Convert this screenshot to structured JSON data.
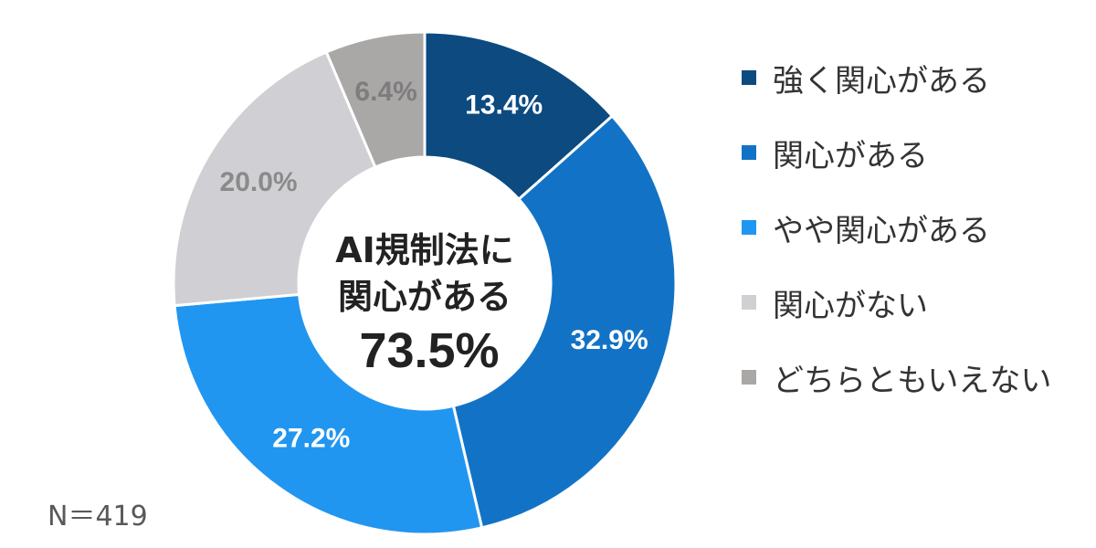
{
  "chart_data": {
    "type": "pie",
    "variant": "donut",
    "categories": [
      "強く関心がある",
      "関心がある",
      "やや関心がある",
      "関心がない",
      "どちらともいえない"
    ],
    "values": [
      13.4,
      32.9,
      27.2,
      20.0,
      6.4
    ],
    "value_labels": [
      "13.4%",
      "32.9%",
      "27.2%",
      "20.0%",
      "6.4%"
    ],
    "colors": [
      "#0c4a80",
      "#1273c6",
      "#2196f0",
      "#d0cfd3",
      "#aaa7a7"
    ],
    "label_colors": [
      "#ffffff",
      "#ffffff",
      "#ffffff",
      "#8a8a8a",
      "#7d7d7d"
    ],
    "start": "12 o'clock",
    "direction": "clockwise",
    "legend_position": "right"
  },
  "center": {
    "line1": "AI規制法に",
    "line2": "関心がある",
    "value": "73.5%"
  },
  "legend": {
    "items": [
      {
        "label": "強く関心がある",
        "color": "#0c4a80"
      },
      {
        "label": "関心がある",
        "color": "#1273c6"
      },
      {
        "label": "やや関心がある",
        "color": "#2196f0"
      },
      {
        "label": "関心がない",
        "color": "#d0cfd3"
      },
      {
        "label": "どちらともいえない",
        "color": "#aaa7a7"
      }
    ]
  },
  "note": "N＝419"
}
